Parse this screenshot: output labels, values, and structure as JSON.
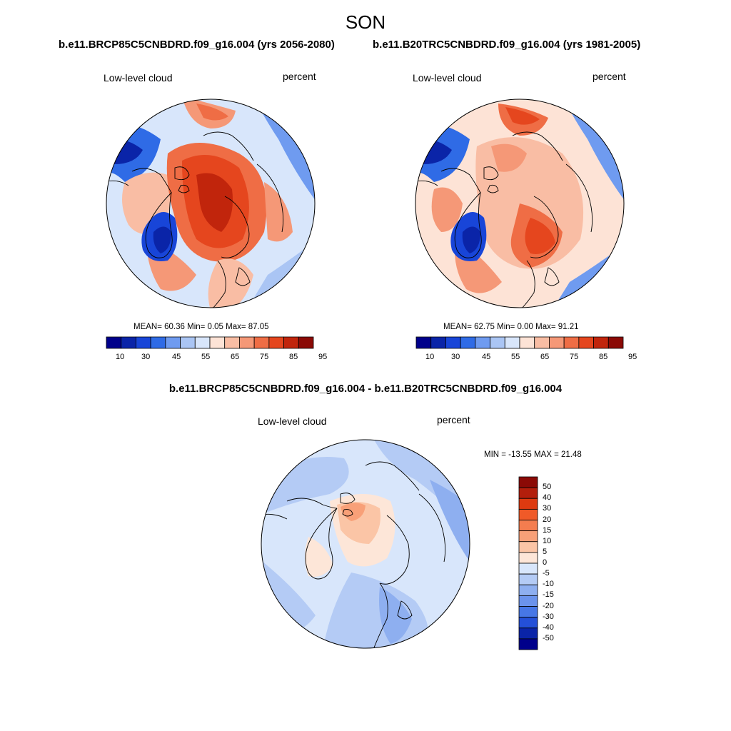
{
  "figure": {
    "title": "SON",
    "diff_title": "b.e11.BRCP85C5CNBDRD.f09_g16.004 - b.e11.B20TRC5CNBDRD.f09_g16.004"
  },
  "panels": [
    {
      "case": "b.e11.BRCP85C5CNBDRD.f09_g16.004 (yrs 2056-2080)",
      "variable": "Low-level cloud",
      "units": "percent",
      "stats": "MEAN=  60.36  Min=   0.05  Max=  87.05",
      "colorbar_ticks": [
        "10",
        "30",
        "45",
        "55",
        "65",
        "75",
        "85",
        "95"
      ]
    },
    {
      "case": "b.e11.B20TRC5CNBDRD.f09_g16.004 (yrs 1981-2005)",
      "variable": "Low-level cloud",
      "units": "percent",
      "stats": "MEAN=  62.75  Min=   0.00  Max=  91.21",
      "colorbar_ticks": [
        "10",
        "30",
        "45",
        "55",
        "65",
        "75",
        "85",
        "95"
      ]
    }
  ],
  "difference": {
    "variable": "Low-level cloud",
    "units": "percent",
    "stats": "MIN = -13.55 MAX =  21.48",
    "colorbar_labels": [
      "50",
      "40",
      "30",
      "20",
      "15",
      "10",
      "5",
      "0",
      "-5",
      "-10",
      "-15",
      "-20",
      "-30",
      "-40",
      "-50"
    ]
  },
  "colors": {
    "abs_scale": [
      "#00008b",
      "#0a24a8",
      "#1845d8",
      "#2f6be6",
      "#6f9bf0",
      "#aac5f4",
      "#d8e6fb",
      "#fde3d6",
      "#f9bda4",
      "#f59877",
      "#ef6d45",
      "#e5461e",
      "#c1250c",
      "#8b0a06"
    ],
    "diff_scale": [
      "#8b0a06",
      "#b31e0c",
      "#de3a10",
      "#f05a28",
      "#f47d4f",
      "#f8a078",
      "#fbc5a6",
      "#fde6d8",
      "#d8e6fb",
      "#b4cbf5",
      "#8eaff0",
      "#6b93ec",
      "#4777e6",
      "#2450d8",
      "#0a24a8",
      "#00008b"
    ]
  }
}
